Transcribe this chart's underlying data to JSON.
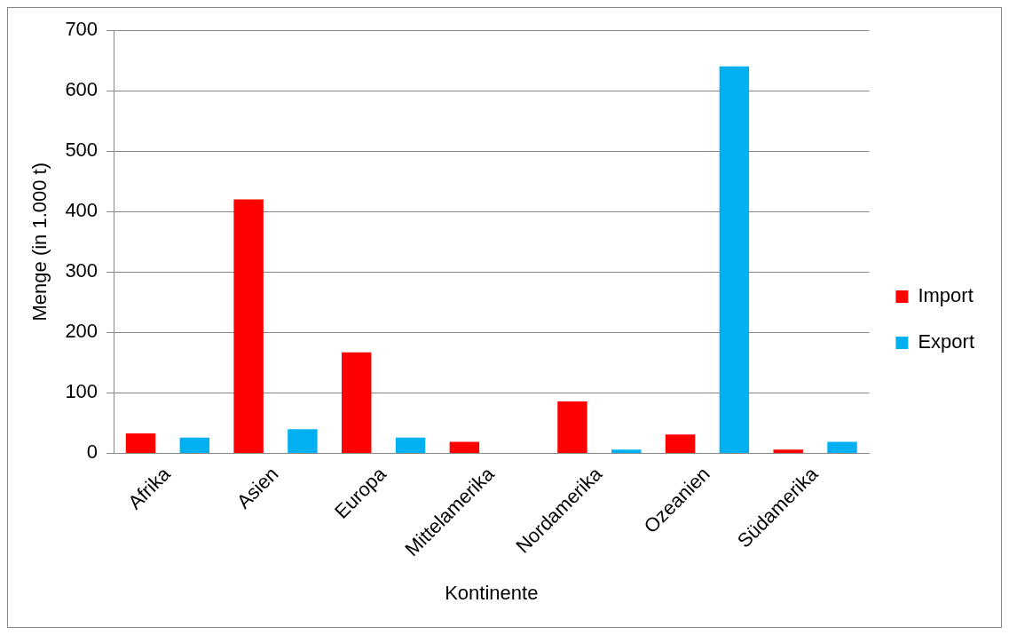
{
  "chart_data": {
    "type": "bar",
    "xlabel": "Kontinente",
    "ylabel": "Menge (in 1.000 t)",
    "categories": [
      "Afrika",
      "Asien",
      "Europa",
      "Mittelamerika",
      "Nordamerika",
      "Ozeanien",
      "Südamerika"
    ],
    "series": [
      {
        "name": "Import",
        "color": "#ff0000",
        "values": [
          33,
          420,
          167,
          19,
          86,
          31,
          6
        ]
      },
      {
        "name": "Export",
        "color": "#00b0f0",
        "values": [
          26,
          40,
          26,
          0,
          6,
          640,
          19
        ]
      }
    ],
    "ylim": [
      0,
      700
    ],
    "yticks": [
      0,
      100,
      200,
      300,
      400,
      500,
      600,
      700
    ],
    "grid": "y",
    "legend": "right"
  }
}
